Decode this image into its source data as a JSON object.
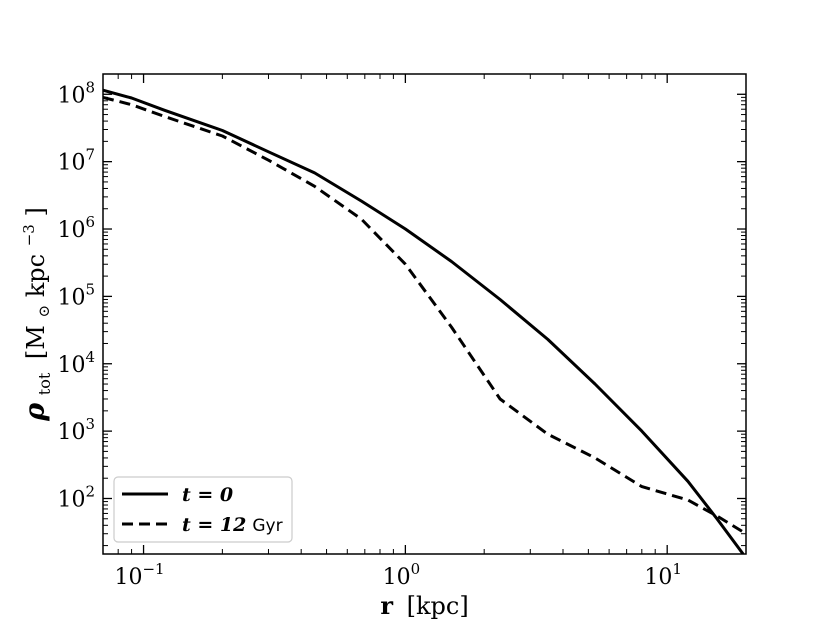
{
  "chart_data": {
    "type": "line",
    "xlabel_main": "r",
    "xlabel_unit": "[kpc]",
    "ylabel_main": "ρ",
    "ylabel_sub": "tot",
    "ylabel_unit_open": "[M",
    "ylabel_unit_sun": "⊙",
    "ylabel_unit_rest": " kpc",
    "ylabel_unit_exp": "−3",
    "ylabel_unit_close": "]",
    "x_scale": "log",
    "y_scale": "log",
    "xlim": [
      0.07,
      20
    ],
    "ylim": [
      15,
      200000000
    ],
    "x_ticks": [
      {
        "value": 0.1,
        "base": "10",
        "exp": "−1"
      },
      {
        "value": 1,
        "base": "10",
        "exp": "0"
      },
      {
        "value": 10,
        "base": "10",
        "exp": "1"
      }
    ],
    "y_ticks": [
      {
        "value": 100,
        "base": "10",
        "exp": "2"
      },
      {
        "value": 1000,
        "base": "10",
        "exp": "3"
      },
      {
        "value": 10000,
        "base": "10",
        "exp": "4"
      },
      {
        "value": 100000,
        "base": "10",
        "exp": "5"
      },
      {
        "value": 1000000,
        "base": "10",
        "exp": "6"
      },
      {
        "value": 10000000,
        "base": "10",
        "exp": "7"
      },
      {
        "value": 100000000,
        "base": "10",
        "exp": "8"
      }
    ],
    "legend_position": "lower-left",
    "series": [
      {
        "name": "t = 0",
        "legend_math": "t = 0",
        "legend_unit": "",
        "style": "solid",
        "color": "#000000",
        "x": [
          0.07,
          0.09,
          0.12,
          0.2,
          0.3,
          0.45,
          0.68,
          1.0,
          1.5,
          2.3,
          3.5,
          5.3,
          8.0,
          12.0,
          15.5,
          19.5
        ],
        "y": [
          115000000,
          88000000,
          58000000,
          29000000,
          14000000,
          6800000,
          2600000,
          1000000,
          330000,
          90000,
          23000,
          5000,
          1000,
          180,
          50,
          15
        ]
      },
      {
        "name": "t = 12 Gyr",
        "legend_math": "t = 12",
        "legend_unit": "Gyr",
        "style": "dashed",
        "color": "#000000",
        "x": [
          0.07,
          0.09,
          0.12,
          0.2,
          0.3,
          0.45,
          0.68,
          1.0,
          1.5,
          2.3,
          3.5,
          5.3,
          8.0,
          12.0,
          15.5,
          20.0
        ],
        "y": [
          90000000,
          70000000,
          47000000,
          24000000,
          10500000,
          4300000,
          1400000,
          300000,
          35000,
          3000,
          900,
          400,
          150,
          95,
          55,
          30
        ]
      }
    ]
  }
}
